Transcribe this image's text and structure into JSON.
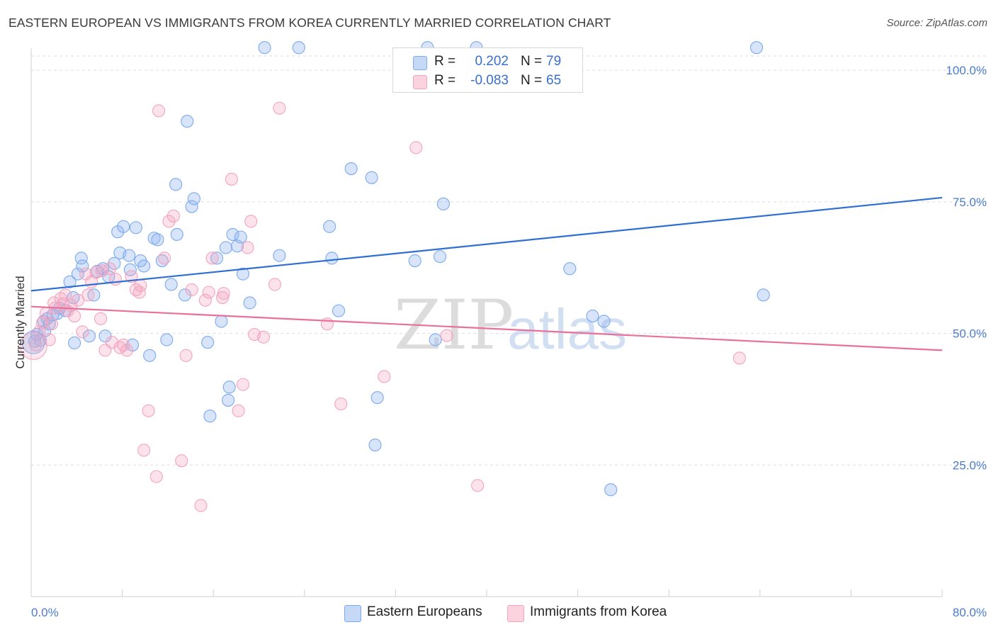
{
  "title": "EASTERN EUROPEAN VS IMMIGRANTS FROM KOREA CURRENTLY MARRIED CORRELATION CHART",
  "source": "Source: ZipAtlas.com",
  "watermark": "ZIPatlas",
  "legend": {
    "rows": [
      {
        "r_label": "R =",
        "r_value": "0.202",
        "n_label": "N =",
        "n_value": "79",
        "color": "#7aaaf0"
      },
      {
        "r_label": "R =",
        "r_value": "-0.083",
        "n_label": "N =",
        "n_value": "65",
        "color": "#f4a3bd"
      }
    ]
  },
  "bottom_legend": [
    "Eastern Europeans",
    "Immigrants from Korea"
  ],
  "chart_data": {
    "type": "scatter",
    "title": "EASTERN EUROPEAN VS IMMIGRANTS FROM KOREA CURRENTLY MARRIED CORRELATION CHART",
    "xlabel": "",
    "ylabel": "Currently Married",
    "xlim": [
      0,
      80
    ],
    "ylim": [
      0,
      105
    ],
    "x_tick_labels": [
      "0.0%",
      "80.0%"
    ],
    "y_ticks": [
      25,
      50,
      75,
      100
    ],
    "y_tick_labels": [
      "25.0%",
      "50.0%",
      "75.0%",
      "100.0%"
    ],
    "grid": true,
    "legend_position": "top-center",
    "series": [
      {
        "name": "Eastern Europeans",
        "color": "#7aaaf0",
        "line_color": "#2f6fd1",
        "trend": {
          "x": [
            0,
            80
          ],
          "y": [
            58.1,
            75.8
          ]
        },
        "points": [
          [
            0.3,
            48.5
          ],
          [
            0.5,
            49.8
          ],
          [
            0.8,
            48.7
          ],
          [
            1.1,
            52.3
          ],
          [
            1.2,
            50.5
          ],
          [
            1.4,
            52.8
          ],
          [
            2.3,
            53.8
          ],
          [
            2.5,
            54.8
          ],
          [
            3.0,
            54.3
          ],
          [
            3.4,
            59.8
          ],
          [
            3.7,
            56.8
          ],
          [
            4.1,
            61.3
          ],
          [
            4.4,
            64.3
          ],
          [
            4.5,
            62.8
          ],
          [
            5.1,
            49.5
          ],
          [
            5.5,
            57.3
          ],
          [
            5.8,
            61.8
          ],
          [
            6.3,
            62.3
          ],
          [
            6.5,
            49.5
          ],
          [
            6.8,
            60.8
          ],
          [
            7.3,
            63.3
          ],
          [
            7.6,
            69.3
          ],
          [
            7.8,
            65.3
          ],
          [
            8.1,
            70.3
          ],
          [
            8.6,
            64.8
          ],
          [
            8.9,
            47.8
          ],
          [
            9.2,
            70.1
          ],
          [
            9.6,
            63.8
          ],
          [
            9.9,
            62.8
          ],
          [
            10.4,
            45.8
          ],
          [
            10.8,
            68.1
          ],
          [
            11.1,
            67.8
          ],
          [
            11.5,
            63.8
          ],
          [
            11.9,
            48.8
          ],
          [
            12.3,
            59.3
          ],
          [
            12.7,
            78.3
          ],
          [
            12.8,
            68.8
          ],
          [
            13.5,
            57.3
          ],
          [
            13.7,
            90.3
          ],
          [
            14.1,
            74.1
          ],
          [
            14.3,
            75.6
          ],
          [
            15.5,
            48.3
          ],
          [
            15.7,
            34.3
          ],
          [
            16.3,
            64.3
          ],
          [
            16.7,
            52.3
          ],
          [
            17.1,
            66.3
          ],
          [
            17.7,
            68.8
          ],
          [
            17.4,
            39.8
          ],
          [
            17.3,
            37.3
          ],
          [
            18.1,
            66.6
          ],
          [
            18.4,
            68.3
          ],
          [
            18.6,
            61.3
          ],
          [
            19.2,
            55.8
          ],
          [
            20.5,
            104.3
          ],
          [
            21.8,
            64.8
          ],
          [
            23.5,
            104.3
          ],
          [
            26.2,
            70.3
          ],
          [
            26.4,
            64.3
          ],
          [
            27.0,
            54.3
          ],
          [
            28.1,
            81.3
          ],
          [
            29.9,
            79.6
          ],
          [
            30.4,
            37.8
          ],
          [
            30.2,
            28.8
          ],
          [
            33.7,
            63.8
          ],
          [
            34.8,
            104.3
          ],
          [
            35.5,
            48.8
          ],
          [
            35.9,
            64.6
          ],
          [
            36.2,
            74.6
          ],
          [
            39.1,
            104.3
          ],
          [
            47.3,
            62.3
          ],
          [
            49.3,
            53.3
          ],
          [
            50.3,
            52.3
          ],
          [
            50.9,
            20.3
          ],
          [
            63.7,
            104.3
          ],
          [
            64.3,
            57.3
          ],
          [
            1.6,
            51.8
          ],
          [
            1.9,
            53.5
          ],
          [
            3.8,
            48.2
          ],
          [
            8.7,
            62.1
          ]
        ]
      },
      {
        "name": "Immigrants from Korea",
        "color": "#f4a3bd",
        "line_color": "#e8709a",
        "trend": {
          "x": [
            0,
            80
          ],
          "y": [
            55.1,
            46.8
          ]
        },
        "points": [
          [
            0.4,
            47.8
          ],
          [
            0.7,
            50.3
          ],
          [
            1.0,
            52.0
          ],
          [
            1.3,
            53.8
          ],
          [
            1.6,
            48.8
          ],
          [
            1.8,
            51.8
          ],
          [
            2.0,
            55.8
          ],
          [
            2.1,
            54.8
          ],
          [
            2.6,
            56.6
          ],
          [
            2.8,
            55.6
          ],
          [
            3.0,
            57.3
          ],
          [
            3.2,
            54.3
          ],
          [
            3.5,
            55.3
          ],
          [
            3.8,
            53.3
          ],
          [
            4.1,
            56.3
          ],
          [
            4.5,
            50.3
          ],
          [
            4.8,
            61.3
          ],
          [
            5.0,
            57.3
          ],
          [
            5.3,
            59.8
          ],
          [
            5.7,
            61.6
          ],
          [
            6.1,
            52.8
          ],
          [
            6.5,
            46.8
          ],
          [
            6.9,
            62.3
          ],
          [
            7.1,
            48.3
          ],
          [
            7.4,
            60.3
          ],
          [
            7.8,
            47.3
          ],
          [
            8.1,
            47.8
          ],
          [
            8.4,
            46.8
          ],
          [
            8.8,
            60.8
          ],
          [
            9.2,
            58.3
          ],
          [
            9.5,
            57.8
          ],
          [
            9.9,
            27.8
          ],
          [
            10.3,
            35.3
          ],
          [
            11.0,
            22.8
          ],
          [
            11.2,
            92.3
          ],
          [
            11.7,
            64.3
          ],
          [
            12.1,
            71.3
          ],
          [
            12.5,
            72.3
          ],
          [
            13.2,
            25.8
          ],
          [
            13.6,
            45.8
          ],
          [
            14.1,
            58.3
          ],
          [
            14.9,
            17.3
          ],
          [
            15.3,
            56.3
          ],
          [
            15.6,
            57.8
          ],
          [
            15.9,
            64.3
          ],
          [
            16.8,
            56.8
          ],
          [
            16.9,
            57.6
          ],
          [
            17.6,
            79.3
          ],
          [
            18.2,
            35.3
          ],
          [
            18.6,
            40.3
          ],
          [
            19.0,
            66.3
          ],
          [
            19.3,
            71.3
          ],
          [
            19.6,
            49.8
          ],
          [
            20.4,
            49.3
          ],
          [
            21.4,
            59.3
          ],
          [
            21.8,
            92.8
          ],
          [
            26.0,
            51.8
          ],
          [
            27.2,
            36.6
          ],
          [
            31.0,
            41.8
          ],
          [
            33.8,
            85.3
          ],
          [
            36.5,
            49.6
          ],
          [
            39.2,
            21.1
          ],
          [
            62.2,
            45.3
          ],
          [
            9.6,
            59.1
          ],
          [
            6.2,
            61.9
          ]
        ]
      }
    ]
  }
}
